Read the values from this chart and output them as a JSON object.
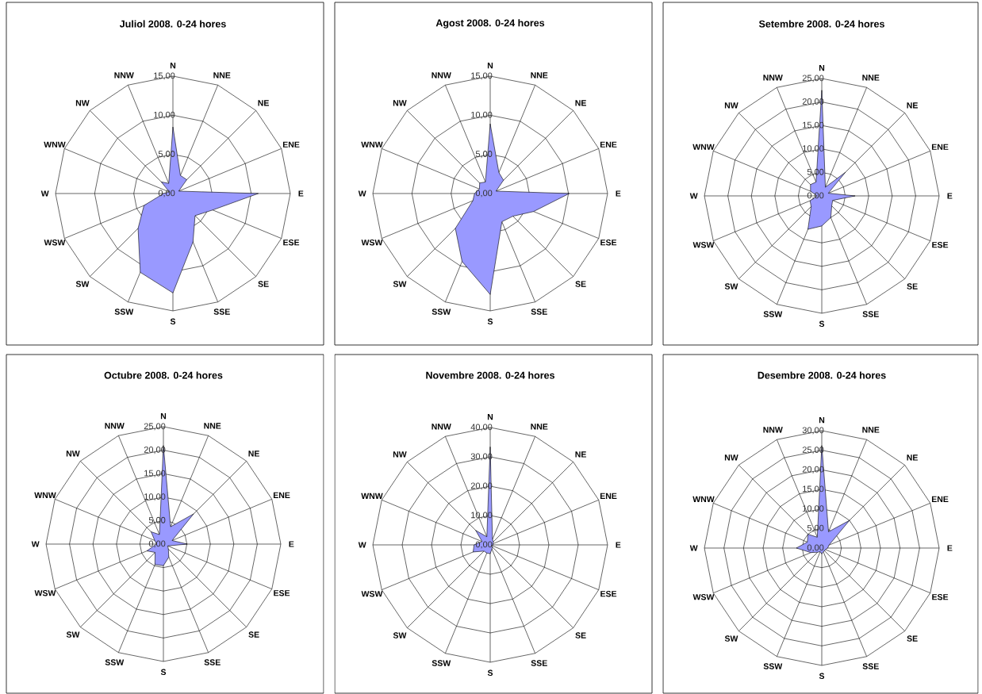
{
  "chart_data": [
    {
      "type": "radar",
      "title": "Juliol 2008. 0-24 hores",
      "categories": [
        "N",
        "NNE",
        "NE",
        "ENE",
        "E",
        "ESE",
        "SE",
        "SSE",
        "S",
        "SSW",
        "SW",
        "WSW",
        "W",
        "WNW",
        "NW",
        "NNW"
      ],
      "series": [
        {
          "color": "#9999ff",
          "values": [
            8.5,
            2.5,
            2.5,
            0.8,
            10.9,
            5.5,
            4.0,
            6.7,
            12.7,
            10.9,
            6.3,
            4.0,
            1.2,
            0.5,
            2.1,
            1.4
          ]
        }
      ],
      "ylim": [
        0,
        15
      ],
      "yticks": [
        {
          "value": 0,
          "label": "0,00"
        },
        {
          "value": 5,
          "label": "5,00"
        },
        {
          "value": 10,
          "label": "10,00"
        },
        {
          "value": 15,
          "label": "15,00"
        }
      ],
      "grid": true
    },
    {
      "type": "radar",
      "title": "Agost 2008. 0-24 hores",
      "categories": [
        "N",
        "NNE",
        "NE",
        "ENE",
        "E",
        "ESE",
        "SE",
        "SSE",
        "S",
        "SSW",
        "SW",
        "WSW",
        "W",
        "WNW",
        "NW",
        "NNW"
      ],
      "series": [
        {
          "color": "#9999ff",
          "values": [
            8.9,
            2.9,
            2.4,
            0.8,
            10.1,
            6.0,
            4.1,
            3.9,
            12.9,
            9.4,
            6.3,
            2.4,
            2.0,
            1.5,
            1.9,
            1.6
          ]
        }
      ],
      "ylim": [
        0,
        15
      ],
      "yticks": [
        {
          "value": 0,
          "label": "0,00"
        },
        {
          "value": 5,
          "label": "5,00"
        },
        {
          "value": 10,
          "label": "10,00"
        },
        {
          "value": 15,
          "label": "15,00"
        }
      ],
      "grid": true
    },
    {
      "type": "radar",
      "title": "Setembre 2008. 0-24 hores",
      "categories": [
        "N",
        "NNE",
        "NE",
        "ENE",
        "E",
        "ESE",
        "SE",
        "SSE",
        "S",
        "SSW",
        "SW",
        "WSW",
        "W",
        "WNW",
        "NW",
        "NNW"
      ],
      "series": [
        {
          "color": "#9999ff",
          "values": [
            22.5,
            2.0,
            7.1,
            1.5,
            7.1,
            2.5,
            3.0,
            5.0,
            6.4,
            7.7,
            3.2,
            2.7,
            1.0,
            2.6,
            3.4,
            3.2
          ]
        }
      ],
      "ylim": [
        0,
        25
      ],
      "yticks": [
        {
          "value": 0,
          "label": "0,00"
        },
        {
          "value": 5,
          "label": "5,00"
        },
        {
          "value": 10,
          "label": "10,00"
        },
        {
          "value": 15,
          "label": "15,00"
        },
        {
          "value": 20,
          "label": "20,00"
        },
        {
          "value": 25,
          "label": "25,00"
        }
      ],
      "grid": true
    },
    {
      "type": "radar",
      "title": "Octubre 2008. 0-24 hores",
      "categories": [
        "N",
        "NNE",
        "NE",
        "ENE",
        "E",
        "ESE",
        "SE",
        "SSE",
        "S",
        "SSW",
        "SW",
        "WSW",
        "W",
        "WNW",
        "NW",
        "NNW"
      ],
      "series": [
        {
          "color": "#9999ff",
          "values": [
            21.0,
            4.0,
            9.1,
            2.0,
            5.1,
            1.0,
            1.5,
            3.0,
            4.6,
            4.7,
            2.5,
            3.8,
            1.5,
            2.0,
            3.7,
            2.2
          ]
        }
      ],
      "ylim": [
        0,
        25
      ],
      "yticks": [
        {
          "value": 0,
          "label": "0,00"
        },
        {
          "value": 5,
          "label": "5,00"
        },
        {
          "value": 10,
          "label": "10,00"
        },
        {
          "value": 15,
          "label": "15,00"
        },
        {
          "value": 20,
          "label": "20,00"
        },
        {
          "value": 25,
          "label": "25,00"
        }
      ],
      "grid": true
    },
    {
      "type": "radar",
      "title": "Novembre 2008. 0-24 hores",
      "categories": [
        "N",
        "NNE",
        "NE",
        "ENE",
        "E",
        "ESE",
        "SE",
        "SSE",
        "S",
        "SSW",
        "SW",
        "WSW",
        "W",
        "WNW",
        "NW",
        "NNW"
      ],
      "series": [
        {
          "color": "#9999ff",
          "values": [
            33.4,
            2.0,
            1.5,
            1.0,
            1.0,
            0.5,
            1.0,
            1.5,
            3.0,
            3.0,
            3.0,
            6.3,
            5.5,
            3.0,
            7.0,
            3.0
          ]
        }
      ],
      "ylim": [
        0,
        40
      ],
      "yticks": [
        {
          "value": 0,
          "label": "0,00"
        },
        {
          "value": 10,
          "label": "10,00"
        },
        {
          "value": 20,
          "label": "20,00"
        },
        {
          "value": 30,
          "label": "30,00"
        },
        {
          "value": 40,
          "label": "40,00"
        }
      ],
      "grid": true
    },
    {
      "type": "radar",
      "title": "Desembre 2008. 0-24 hores",
      "categories": [
        "N",
        "NNE",
        "NE",
        "ENE",
        "E",
        "ESE",
        "SE",
        "SSE",
        "S",
        "SSW",
        "SW",
        "WSW",
        "W",
        "WNW",
        "NW",
        "NNW"
      ],
      "series": [
        {
          "color": "#9999ff",
          "values": [
            26.2,
            4.5,
            10.0,
            2.0,
            1.5,
            1.0,
            1.0,
            1.0,
            1.5,
            1.0,
            1.5,
            3.0,
            6.5,
            4.0,
            5.0,
            3.0
          ]
        }
      ],
      "ylim": [
        0,
        30
      ],
      "yticks": [
        {
          "value": 0,
          "label": "0,00"
        },
        {
          "value": 5,
          "label": "5,00"
        },
        {
          "value": 10,
          "label": "10,00"
        },
        {
          "value": 15,
          "label": "15,00"
        },
        {
          "value": 20,
          "label": "20,00"
        },
        {
          "value": 25,
          "label": "25,00"
        },
        {
          "value": 30,
          "label": "30,00"
        }
      ],
      "grid": true
    }
  ]
}
